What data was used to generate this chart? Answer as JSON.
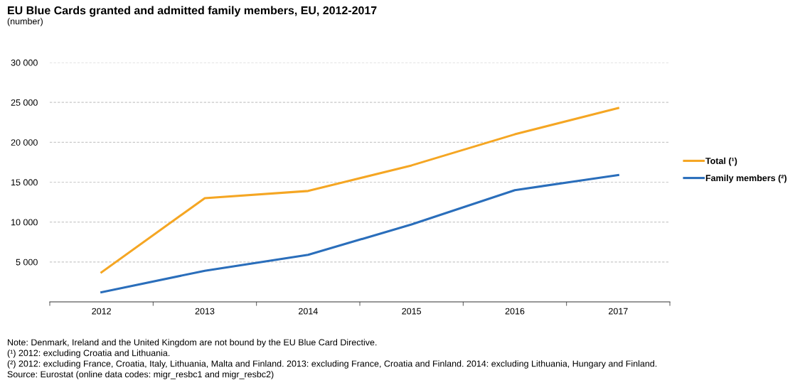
{
  "chart_data": {
    "type": "line",
    "title": "EU Blue Cards granted and admitted family members, EU, 2012-2017",
    "subtitle": "(number)",
    "categories": [
      "2012",
      "2013",
      "2014",
      "2015",
      "2016",
      "2017"
    ],
    "series": [
      {
        "name": "Total (¹)",
        "color": "#f5a623",
        "values": [
          3700,
          13000,
          13900,
          17100,
          21000,
          24300
        ]
      },
      {
        "name": "Family members (²)",
        "color": "#2a6ebb",
        "values": [
          1200,
          3900,
          5900,
          9700,
          14000,
          15900
        ]
      }
    ],
    "ylim": [
      0,
      30000
    ],
    "yticks": [
      {
        "value": 5000,
        "label": "5 000"
      },
      {
        "value": 10000,
        "label": "10 000"
      },
      {
        "value": 15000,
        "label": "15 000"
      },
      {
        "value": 20000,
        "label": "20 000"
      },
      {
        "value": 25000,
        "label": "25 000"
      },
      {
        "value": 30000,
        "label": "30 000"
      }
    ],
    "grid": "y",
    "legend": "right",
    "marker": "none",
    "line_style": "solid",
    "annotations": [
      "Note: Denmark, Ireland and the United Kingdom are not bound by the EU Blue Card Directive.",
      "(¹) 2012: excluding Croatia and Lithuania.",
      "(²) 2012: excluding France, Croatia, Italy, Lithuania, Malta and Finland. 2013: excluding France, Croatia and Finland. 2014: excluding Lithuania, Hungary and Finland.",
      "Source: Eurostat (online data codes: migr_resbc1 and migr_resbc2)"
    ]
  }
}
